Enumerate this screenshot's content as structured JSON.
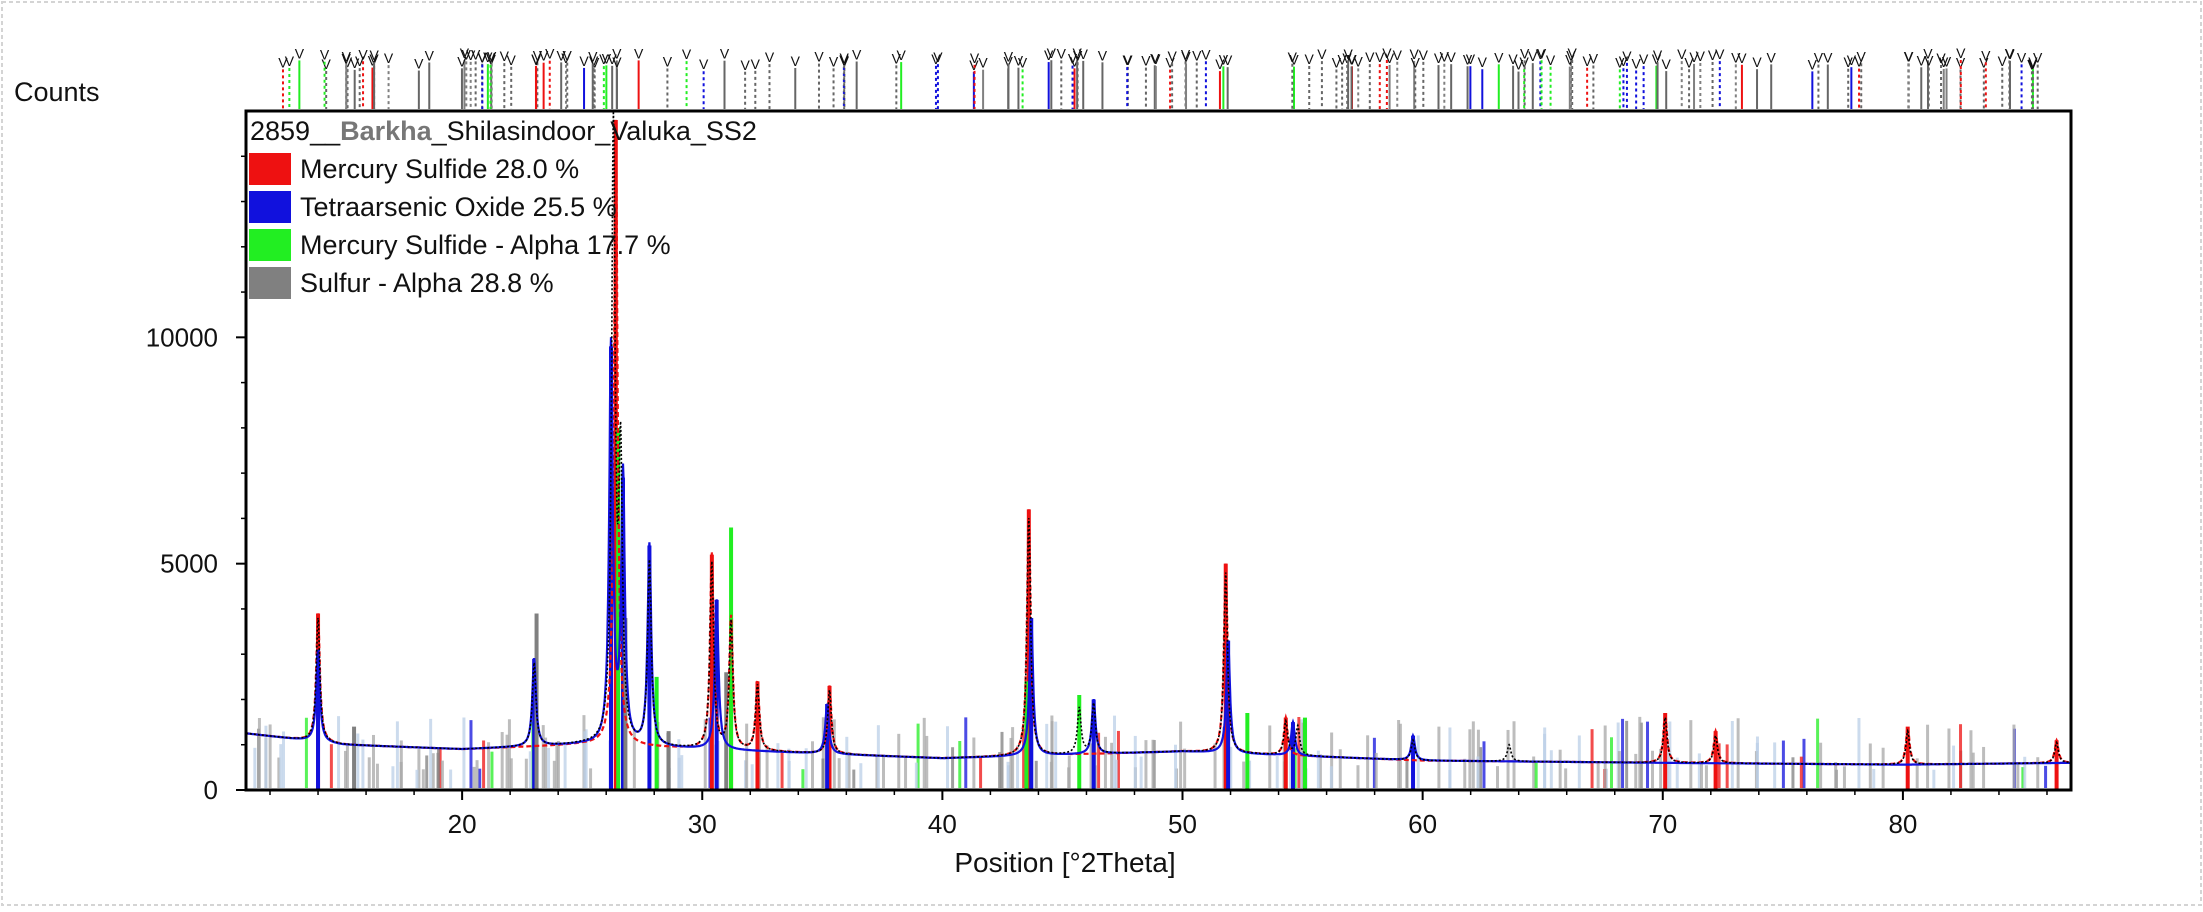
{
  "chart_data": {
    "type": "line",
    "title": "2859__Barkha_Shilasindoor_Valuka_SS2",
    "title_parts": [
      "2859__",
      "Barkha",
      "_Shilasindoor_Valuka_SS2"
    ],
    "xlabel": "Position [°2Theta]",
    "ylabel": "Counts",
    "xlim": [
      11,
      87
    ],
    "ylim": [
      0,
      15000
    ],
    "x_ticks": [
      20,
      30,
      40,
      50,
      60,
      70,
      80
    ],
    "y_ticks": [
      0,
      5000,
      10000
    ],
    "grid": false,
    "legend_position": "top-left",
    "series": [
      {
        "name": "Mercury Sulfide 28.0 %",
        "color": "#ee1111",
        "peaks": [
          [
            14,
            3900
          ],
          [
            26.4,
            14800
          ],
          [
            30.4,
            5200
          ],
          [
            31.2,
            3800
          ],
          [
            32.3,
            2400
          ],
          [
            35.3,
            2300
          ],
          [
            43.6,
            6200
          ],
          [
            51.8,
            5000
          ],
          [
            54.3,
            1600
          ],
          [
            70.1,
            1700
          ],
          [
            72.2,
            1300
          ],
          [
            80.2,
            1400
          ],
          [
            86.4,
            1100
          ]
        ]
      },
      {
        "name": "Tetraarsenic Oxide 25.5 %",
        "color": "#1111dd",
        "peaks": [
          [
            14,
            3100
          ],
          [
            23.0,
            2900
          ],
          [
            26.2,
            9800
          ],
          [
            26.7,
            6900
          ],
          [
            27.8,
            5400
          ],
          [
            30.6,
            4200
          ],
          [
            35.2,
            1900
          ],
          [
            43.7,
            3800
          ],
          [
            46.3,
            2000
          ],
          [
            51.9,
            3300
          ],
          [
            54.6,
            1500
          ],
          [
            59.6,
            1200
          ]
        ]
      },
      {
        "name": "Mercury Sulfide - Alpha 17.7 %",
        "color": "#22ee22",
        "peaks": [
          [
            26.5,
            8000
          ],
          [
            28.1,
            2500
          ],
          [
            31.2,
            5800
          ],
          [
            43.5,
            2400
          ],
          [
            45.7,
            2100
          ],
          [
            52.7,
            1700
          ],
          [
            55.1,
            1600
          ]
        ]
      },
      {
        "name": "Sulfur - Alpha 28.8 %",
        "color": "#808080",
        "peaks": [
          [
            15.5,
            1400
          ],
          [
            23.1,
            3900
          ],
          [
            26.8,
            3800
          ],
          [
            28.6,
            1300
          ],
          [
            31.0,
            2600
          ]
        ]
      }
    ],
    "observed": {
      "color": "#000000",
      "baseline": [
        [
          11,
          1250
        ],
        [
          15,
          1000
        ],
        [
          20,
          900
        ],
        [
          25,
          1000
        ],
        [
          30,
          900
        ],
        [
          35,
          800
        ],
        [
          40,
          700
        ],
        [
          50,
          850
        ],
        [
          60,
          650
        ],
        [
          70,
          600
        ],
        [
          80,
          560
        ],
        [
          87,
          600
        ]
      ],
      "peaks": [
        [
          14,
          3800
        ],
        [
          23.0,
          2800
        ],
        [
          26.3,
          14500
        ],
        [
          26.6,
          7000
        ],
        [
          27.8,
          5000
        ],
        [
          30.4,
          5000
        ],
        [
          31.2,
          3700
        ],
        [
          32.3,
          2300
        ],
        [
          35.3,
          2200
        ],
        [
          43.6,
          6000
        ],
        [
          45.7,
          1800
        ],
        [
          46.3,
          1900
        ],
        [
          51.8,
          4800
        ],
        [
          54.3,
          1500
        ],
        [
          54.8,
          1400
        ],
        [
          59.6,
          1100
        ],
        [
          63.6,
          1000
        ],
        [
          70.1,
          1600
        ],
        [
          72.2,
          1200
        ],
        [
          80.2,
          1300
        ],
        [
          86.4,
          1050
        ]
      ]
    }
  }
}
